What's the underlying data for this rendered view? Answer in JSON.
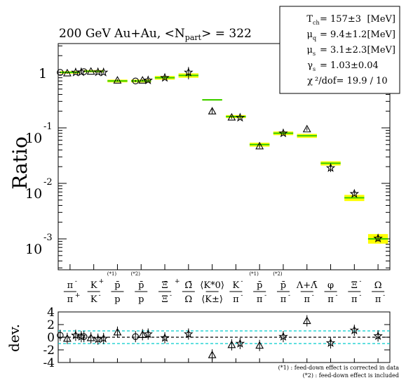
{
  "chart_data": {
    "type": "scatter",
    "title": "200 GeV Au+Au, <N",
    "title_sub": "part",
    "title_tail": "> = 322",
    "ylabel": "Ratio",
    "ylabel_dev": "dev.",
    "yscale": "log",
    "ylim": [
      0.0005,
      5
    ],
    "ytick_labels": [
      {
        "base": "1",
        "exp": ""
      },
      {
        "base": "10",
        "exp": "-1"
      },
      {
        "base": "10",
        "exp": "-2"
      },
      {
        "base": "10",
        "exp": "-3"
      }
    ],
    "dev_ylim": [
      -4,
      4
    ],
    "dev_ticks": [
      "4",
      "2",
      "0",
      "-2",
      "-4"
    ],
    "categories": [
      {
        "num": "π",
        "num_sup": "-",
        "den": "π",
        "den_sup": "+",
        "mark": ""
      },
      {
        "num": "K",
        "num_sup": "+",
        "den": "K",
        "den_sup": "-",
        "mark": ""
      },
      {
        "num": "p̄",
        "num_sup": "",
        "den": "p",
        "den_sup": "",
        "mark": "(*1)"
      },
      {
        "num": "p̄",
        "num_sup": "",
        "den": "p",
        "den_sup": "",
        "mark": "(*2)"
      },
      {
        "num": "Ξ̄",
        "num_sup": "+",
        "den": "Ξ",
        "den_sup": "-",
        "mark": ""
      },
      {
        "num": "Ω̄",
        "num_sup": "",
        "den": "Ω",
        "den_sup": "",
        "mark": ""
      },
      {
        "num": "⟨K*0⟩",
        "num_sup": "",
        "den": "⟨K±⟩",
        "den_sup": "",
        "mark": ""
      },
      {
        "num": "K",
        "num_sup": "-",
        "den": "π",
        "den_sup": "-",
        "mark": ""
      },
      {
        "num": "p̄",
        "num_sup": "",
        "den": "π",
        "den_sup": "-",
        "mark": "(*1)"
      },
      {
        "num": "p̄",
        "num_sup": "",
        "den": "π",
        "den_sup": "-",
        "mark": "(*2)"
      },
      {
        "num": "Λ+Λ̄",
        "num_sup": "",
        "den": "π",
        "den_sup": "-",
        "mark": ""
      },
      {
        "num": "φ",
        "num_sup": "",
        "den": "π",
        "den_sup": "-",
        "mark": ""
      },
      {
        "num": "Ξ",
        "num_sup": "-",
        "den": "π",
        "den_sup": "-",
        "mark": ""
      },
      {
        "num": "Ω",
        "num_sup": "",
        "den": "π",
        "den_sup": "-",
        "mark": ""
      }
    ],
    "model": [
      {
        "y": 1.0,
        "band": [
          0.95,
          1.05
        ]
      },
      {
        "y": 1.05,
        "band": [
          1.0,
          1.1
        ]
      },
      {
        "y": 0.7,
        "band": [
          0.66,
          0.74
        ]
      },
      {
        "y": 0.7,
        "band": [
          0.66,
          0.74
        ]
      },
      {
        "y": 0.8,
        "band": [
          0.74,
          0.86
        ]
      },
      {
        "y": 0.88,
        "band": [
          0.8,
          0.96
        ]
      },
      {
        "y": 0.32,
        "band": [
          0.31,
          0.33
        ]
      },
      {
        "y": 0.16,
        "band": [
          0.15,
          0.17
        ]
      },
      {
        "y": 0.05,
        "band": [
          0.046,
          0.054
        ]
      },
      {
        "y": 0.08,
        "band": [
          0.074,
          0.086
        ]
      },
      {
        "y": 0.072,
        "band": [
          0.066,
          0.078
        ]
      },
      {
        "y": 0.023,
        "band": [
          0.021,
          0.025
        ]
      },
      {
        "y": 0.0055,
        "band": [
          0.0048,
          0.0062
        ]
      },
      {
        "y": 0.001,
        "band": [
          0.00082,
          0.00122
        ]
      }
    ],
    "series": [
      {
        "name": "",
        "marker": "circle",
        "points": [
          {
            "c": 0,
            "o": -14,
            "y": 1.0,
            "err": 0.03,
            "dev": 0.3
          },
          {
            "c": 1,
            "o": -14,
            "y": 1.03,
            "err": 0.03,
            "dev": 0.1
          },
          {
            "c": 3,
            "o": -8,
            "y": 0.7,
            "err": 0.03,
            "dev": 0.1
          }
        ]
      },
      {
        "name": "",
        "marker": "triangle",
        "points": [
          {
            "c": 0,
            "o": -4,
            "y": 0.97,
            "err": 0.03,
            "dev": -0.2
          },
          {
            "c": 1,
            "o": -4,
            "y": 1.04,
            "err": 0.03,
            "dev": -0.1
          },
          {
            "c": 2,
            "o": 0,
            "y": 0.72,
            "err": 0.03,
            "dev": 0.8
          },
          {
            "c": 3,
            "o": 2,
            "y": 0.72,
            "err": 0.03,
            "dev": 0.4
          },
          {
            "c": 6,
            "o": 0,
            "y": 0.2,
            "err": 0.02,
            "dev": -2.8
          },
          {
            "c": 7,
            "o": -6,
            "y": 0.155,
            "err": 0.01,
            "dev": -1.2
          },
          {
            "c": 8,
            "o": 0,
            "y": 0.047,
            "err": 0.004,
            "dev": -1.3
          },
          {
            "c": 10,
            "o": 0,
            "y": 0.095,
            "err": 0.006,
            "dev": 2.6
          }
        ]
      },
      {
        "name": "",
        "marker": "star",
        "points": [
          {
            "c": 0,
            "o": 8,
            "y": 1.0,
            "err": 0.03,
            "dev": 0.3
          },
          {
            "c": 0,
            "o": 16,
            "y": 1.01,
            "err": 0.03,
            "dev": 0.1
          },
          {
            "c": 1,
            "o": 6,
            "y": 1.01,
            "err": 0.04,
            "dev": -0.3
          },
          {
            "c": 1,
            "o": 14,
            "y": 1.0,
            "err": 0.04,
            "dev": -0.2
          },
          {
            "c": 3,
            "o": 10,
            "y": 0.72,
            "err": 0.05,
            "dev": 0.5
          },
          {
            "c": 4,
            "o": 0,
            "y": 0.8,
            "err": 0.06,
            "dev": -0.1
          },
          {
            "c": 5,
            "o": 0,
            "y": 1.0,
            "err": 0.25,
            "dev": 0.5
          },
          {
            "c": 7,
            "o": 6,
            "y": 0.153,
            "err": 0.01,
            "dev": -1.0
          },
          {
            "c": 9,
            "o": 0,
            "y": 0.08,
            "err": 0.006,
            "dev": 0.1
          },
          {
            "c": 11,
            "o": 0,
            "y": 0.019,
            "err": 0.003,
            "dev": -0.9
          },
          {
            "c": 12,
            "o": 0,
            "y": 0.0065,
            "err": 0.0006,
            "dev": 1.1
          },
          {
            "c": 13,
            "o": 0,
            "y": 0.00102,
            "err": 0.00012,
            "dev": 0.2
          }
        ]
      }
    ],
    "legend": {
      "placement": "top-right",
      "rows": [
        {
          "sym": "T",
          "sub": "ch",
          "sep": "= ",
          "value": "157±3",
          "unit": "[MeV]"
        },
        {
          "sym": "μ",
          "sub": "q",
          "sep": "= ",
          "value": "9.4±1.2",
          "unit": "[MeV]"
        },
        {
          "sym": "μ",
          "sub": "s",
          "sep": "= ",
          "value": "3.1±2.3",
          "unit": "[MeV]"
        },
        {
          "sym": "γ",
          "sub": "s",
          "sep": "= ",
          "value": "1.03±0.04",
          "unit": ""
        },
        {
          "sym": "χ",
          "sub": "",
          "sep": "²/dof= ",
          "value": "19.9 / 10",
          "unit": ""
        }
      ]
    },
    "footnotes": [
      "(*1) : feed-down effect is corrected in data",
      "(*2) : feed-down effect is included"
    ]
  }
}
